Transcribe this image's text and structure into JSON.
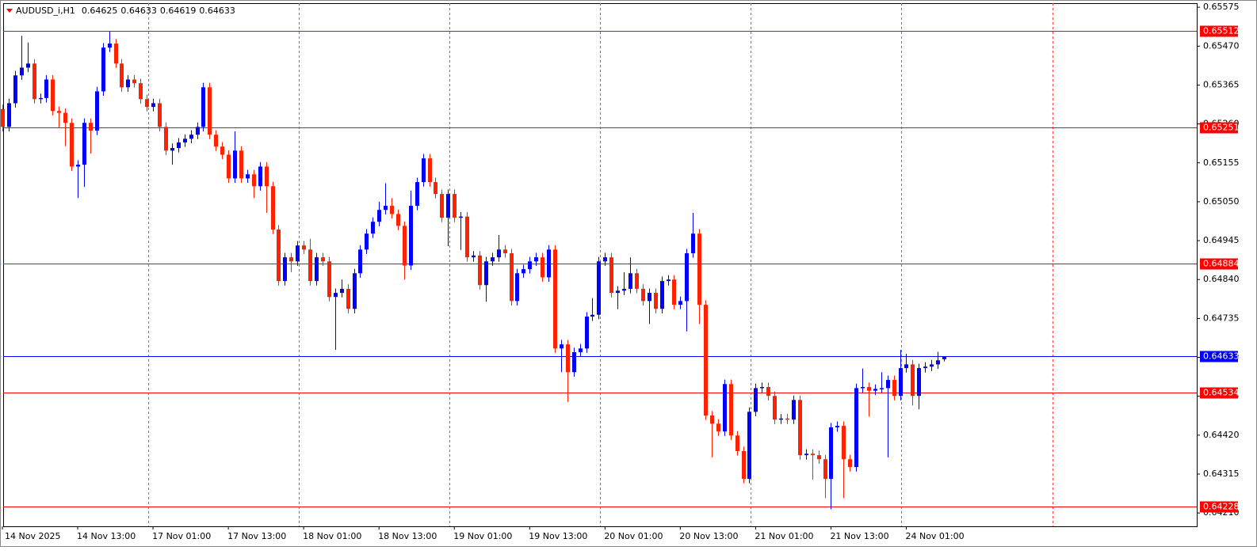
{
  "chart_data": {
    "type": "candlestick",
    "symbol": "AUDUSD_i,H1",
    "up_color": "#0000ff",
    "down_color": "#ff2200",
    "ylim": [
      0.64174,
      0.65586
    ],
    "yticks": [
      0.65575,
      {
        "value": 0.6547,
        "label": "0.65470"
      },
      0.65365,
      {
        "value": 0.6526,
        "label": "0.65260"
      },
      0.65155,
      {
        "value": 0.6505,
        "label": "0.65050"
      },
      0.64945,
      {
        "value": 0.6484,
        "label": "0.64840"
      },
      0.64735,
      {
        "value": 0.6463,
        "label": "0.64630"
      },
      0.64525,
      {
        "value": 0.6442,
        "label": "0.64420"
      },
      0.64315,
      {
        "value": 0.6421,
        "label": "0.64210"
      }
    ],
    "levels": [
      {
        "value": 0.65512,
        "color": "#ff0000"
      },
      {
        "value": 0.65251,
        "color": "#ff0000"
      },
      {
        "value": 0.64884,
        "color": "#ff0000"
      },
      {
        "value": 0.64534,
        "color": "#ff0000"
      },
      {
        "value": 0.64228,
        "color": "#ff0000"
      }
    ],
    "bid": {
      "value": 0.64633,
      "color": "#0000ff"
    },
    "categories": [
      "14 Nov 2025",
      null,
      null,
      null,
      null,
      null,
      null,
      null,
      null,
      null,
      null,
      null,
      "14 Nov 13:00",
      null,
      null,
      null,
      null,
      null,
      null,
      null,
      null,
      null,
      null,
      null,
      "17 Nov 01:00",
      null,
      null,
      null,
      null,
      null,
      null,
      null,
      null,
      null,
      null,
      null,
      "17 Nov 13:00",
      null,
      null,
      null,
      null,
      null,
      null,
      null,
      null,
      null,
      null,
      null,
      "18 Nov 01:00",
      null,
      null,
      null,
      null,
      null,
      null,
      null,
      null,
      null,
      null,
      null,
      "18 Nov 13:00",
      null,
      null,
      null,
      null,
      null,
      null,
      null,
      null,
      null,
      null,
      null,
      "19 Nov 01:00",
      null,
      null,
      null,
      null,
      null,
      null,
      null,
      null,
      null,
      null,
      null,
      "19 Nov 13:00",
      null,
      null,
      null,
      null,
      null,
      null,
      null,
      null,
      null,
      null,
      null,
      "20 Nov 01:00",
      null,
      null,
      null,
      null,
      null,
      null,
      null,
      null,
      null,
      null,
      null,
      "20 Nov 13:00",
      null,
      null,
      null,
      null,
      null,
      null,
      null,
      null,
      null,
      null,
      null,
      "21 Nov 01:00",
      null,
      null,
      null,
      null,
      null,
      null,
      null,
      null,
      null,
      null,
      null,
      "21 Nov 13:00",
      null,
      null,
      null,
      null,
      null,
      null,
      null,
      null,
      null,
      null,
      null,
      "24 Nov 01:00",
      null,
      null,
      null,
      null,
      null,
      null
    ],
    "candles": [
      [
        0.653,
        0.65312,
        0.6524,
        0.65252
      ],
      [
        0.65252,
        0.65328,
        0.6524,
        0.65316
      ],
      [
        0.65316,
        0.65403,
        0.65304,
        0.65391
      ],
      [
        0.65391,
        0.65498,
        0.65379,
        0.65412
      ],
      [
        0.65412,
        0.6548,
        0.654,
        0.65423
      ],
      [
        0.65423,
        0.65435,
        0.65315,
        0.65327
      ],
      [
        0.65327,
        0.65342,
        0.65315,
        0.6533
      ],
      [
        0.6533,
        0.65392,
        0.65318,
        0.6538
      ],
      [
        0.6538,
        0.65392,
        0.65283,
        0.65295
      ],
      [
        0.65295,
        0.65307,
        0.6525,
        0.6529
      ],
      [
        0.6529,
        0.65302,
        0.652,
        0.65263
      ],
      [
        0.65263,
        0.65275,
        0.65133,
        0.65145
      ],
      [
        0.65145,
        0.65162,
        0.6506,
        0.6515
      ],
      [
        0.6515,
        0.65275,
        0.6509,
        0.65263
      ],
      [
        0.65263,
        0.65275,
        0.6518,
        0.65242
      ],
      [
        0.65242,
        0.6536,
        0.6523,
        0.65348
      ],
      [
        0.65348,
        0.65478,
        0.65336,
        0.65466
      ],
      [
        0.65466,
        0.6551,
        0.65454,
        0.65477
      ],
      [
        0.65477,
        0.65489,
        0.65411,
        0.65423
      ],
      [
        0.65423,
        0.65435,
        0.65347,
        0.65359
      ],
      [
        0.65359,
        0.65392,
        0.65347,
        0.6538
      ],
      [
        0.6538,
        0.65392,
        0.65358,
        0.6537
      ],
      [
        0.6537,
        0.65382,
        0.65315,
        0.65327
      ],
      [
        0.65327,
        0.65339,
        0.65294,
        0.65306
      ],
      [
        0.65306,
        0.65328,
        0.65294,
        0.65316
      ],
      [
        0.65316,
        0.65328,
        0.6524,
        0.65252
      ],
      [
        0.65252,
        0.65264,
        0.65176,
        0.65188
      ],
      [
        0.65188,
        0.65207,
        0.6515,
        0.65195
      ],
      [
        0.65195,
        0.65222,
        0.65183,
        0.6521
      ],
      [
        0.6521,
        0.65232,
        0.65198,
        0.6522
      ],
      [
        0.6522,
        0.65243,
        0.65208,
        0.65231
      ],
      [
        0.65231,
        0.65264,
        0.65219,
        0.65252
      ],
      [
        0.65252,
        0.65371,
        0.6524,
        0.65359
      ],
      [
        0.65359,
        0.65371,
        0.65219,
        0.65231
      ],
      [
        0.65231,
        0.65243,
        0.65187,
        0.65199
      ],
      [
        0.65199,
        0.65211,
        0.65165,
        0.65177
      ],
      [
        0.65177,
        0.65189,
        0.65101,
        0.65113
      ],
      [
        0.65113,
        0.6524,
        0.65101,
        0.65188
      ],
      [
        0.65188,
        0.652,
        0.65101,
        0.65113
      ],
      [
        0.65113,
        0.65136,
        0.65101,
        0.65124
      ],
      [
        0.65124,
        0.65136,
        0.6506,
        0.65092
      ],
      [
        0.65092,
        0.65157,
        0.6508,
        0.65145
      ],
      [
        0.65145,
        0.65157,
        0.6502,
        0.65092
      ],
      [
        0.65092,
        0.65104,
        0.64963,
        0.64975
      ],
      [
        0.64975,
        0.64987,
        0.64824,
        0.64836
      ],
      [
        0.64836,
        0.64912,
        0.64824,
        0.649
      ],
      [
        0.649,
        0.64912,
        0.6486,
        0.64889
      ],
      [
        0.64889,
        0.64944,
        0.64877,
        0.64932
      ],
      [
        0.64932,
        0.64944,
        0.64909,
        0.64921
      ],
      [
        0.64921,
        0.6495,
        0.64824,
        0.64836
      ],
      [
        0.64836,
        0.64912,
        0.64824,
        0.649
      ],
      [
        0.649,
        0.64912,
        0.64877,
        0.64889
      ],
      [
        0.64889,
        0.64901,
        0.64781,
        0.64793
      ],
      [
        0.64793,
        0.64816,
        0.6465,
        0.64804
      ],
      [
        0.64804,
        0.6484,
        0.64792,
        0.64815
      ],
      [
        0.64815,
        0.64827,
        0.64749,
        0.64761
      ],
      [
        0.64761,
        0.64869,
        0.64749,
        0.64857
      ],
      [
        0.64857,
        0.64933,
        0.64845,
        0.64921
      ],
      [
        0.64921,
        0.64976,
        0.64909,
        0.64964
      ],
      [
        0.64964,
        0.65008,
        0.64952,
        0.64996
      ],
      [
        0.64996,
        0.6505,
        0.64984,
        0.65028
      ],
      [
        0.65028,
        0.651,
        0.65016,
        0.65039
      ],
      [
        0.65039,
        0.6506,
        0.65005,
        0.65017
      ],
      [
        0.65017,
        0.65029,
        0.64973,
        0.64985
      ],
      [
        0.64985,
        0.64997,
        0.6484,
        0.64878
      ],
      [
        0.64878,
        0.6508,
        0.64866,
        0.65039
      ],
      [
        0.65039,
        0.65115,
        0.65027,
        0.65103
      ],
      [
        0.65103,
        0.65179,
        0.65091,
        0.65167
      ],
      [
        0.65167,
        0.65179,
        0.65091,
        0.65103
      ],
      [
        0.65103,
        0.65115,
        0.65059,
        0.65071
      ],
      [
        0.65071,
        0.65083,
        0.64995,
        0.65007
      ],
      [
        0.65007,
        0.65083,
        0.6493,
        0.65071
      ],
      [
        0.65071,
        0.65083,
        0.64995,
        0.65007
      ],
      [
        0.65007,
        0.65022,
        0.6492,
        0.6501
      ],
      [
        0.6501,
        0.65022,
        0.64888,
        0.649
      ],
      [
        0.649,
        0.64917,
        0.64888,
        0.64905
      ],
      [
        0.64905,
        0.64917,
        0.64813,
        0.64825
      ],
      [
        0.64825,
        0.64901,
        0.6478,
        0.64889
      ],
      [
        0.64889,
        0.64912,
        0.64877,
        0.649
      ],
      [
        0.649,
        0.6496,
        0.64888,
        0.64921
      ],
      [
        0.64921,
        0.64933,
        0.64899,
        0.64911
      ],
      [
        0.64911,
        0.64923,
        0.6477,
        0.64782
      ],
      [
        0.64782,
        0.64869,
        0.6477,
        0.64857
      ],
      [
        0.64857,
        0.6488,
        0.64845,
        0.64868
      ],
      [
        0.64868,
        0.64901,
        0.64856,
        0.64889
      ],
      [
        0.64889,
        0.64912,
        0.64877,
        0.649
      ],
      [
        0.649,
        0.64912,
        0.64834,
        0.64846
      ],
      [
        0.64846,
        0.64933,
        0.64834,
        0.64921
      ],
      [
        0.64921,
        0.64933,
        0.64642,
        0.64654
      ],
      [
        0.64654,
        0.64677,
        0.6459,
        0.64665
      ],
      [
        0.64665,
        0.64677,
        0.6451,
        0.6459
      ],
      [
        0.6459,
        0.64656,
        0.64578,
        0.64644
      ],
      [
        0.64644,
        0.64666,
        0.64632,
        0.64654
      ],
      [
        0.64654,
        0.64752,
        0.64642,
        0.6474
      ],
      [
        0.6474,
        0.6479,
        0.64728,
        0.64745
      ],
      [
        0.64745,
        0.64901,
        0.64733,
        0.64889
      ],
      [
        0.64889,
        0.64912,
        0.64877,
        0.649
      ],
      [
        0.649,
        0.64912,
        0.64792,
        0.64804
      ],
      [
        0.64804,
        0.64822,
        0.6476,
        0.6481
      ],
      [
        0.6481,
        0.6486,
        0.64798,
        0.64815
      ],
      [
        0.64815,
        0.649,
        0.64803,
        0.64857
      ],
      [
        0.64857,
        0.64869,
        0.64803,
        0.64815
      ],
      [
        0.64815,
        0.64827,
        0.6477,
        0.64782
      ],
      [
        0.64782,
        0.64816,
        0.6472,
        0.64804
      ],
      [
        0.64804,
        0.64816,
        0.64749,
        0.64761
      ],
      [
        0.64761,
        0.64848,
        0.64749,
        0.64836
      ],
      [
        0.64836,
        0.64852,
        0.64824,
        0.6484
      ],
      [
        0.6484,
        0.64852,
        0.6476,
        0.64772
      ],
      [
        0.64772,
        0.64794,
        0.6476,
        0.64782
      ],
      [
        0.64782,
        0.64923,
        0.647,
        0.64911
      ],
      [
        0.64911,
        0.6502,
        0.64899,
        0.64964
      ],
      [
        0.64964,
        0.64976,
        0.6472,
        0.64772
      ],
      [
        0.64772,
        0.64784,
        0.64461,
        0.64473
      ],
      [
        0.64473,
        0.64485,
        0.6436,
        0.64451
      ],
      [
        0.64451,
        0.64463,
        0.64418,
        0.6443
      ],
      [
        0.6443,
        0.6457,
        0.64418,
        0.64558
      ],
      [
        0.64558,
        0.6457,
        0.64407,
        0.64419
      ],
      [
        0.64419,
        0.64431,
        0.64365,
        0.64377
      ],
      [
        0.64377,
        0.64389,
        0.6429,
        0.64302
      ],
      [
        0.64302,
        0.64495,
        0.6429,
        0.64483
      ],
      [
        0.64483,
        0.64559,
        0.64471,
        0.64547
      ],
      [
        0.64547,
        0.64562,
        0.64535,
        0.6455
      ],
      [
        0.6455,
        0.64562,
        0.64514,
        0.64526
      ],
      [
        0.64526,
        0.64538,
        0.6445,
        0.64462
      ],
      [
        0.64462,
        0.64477,
        0.6445,
        0.64465
      ],
      [
        0.64465,
        0.64477,
        0.6445,
        0.64462
      ],
      [
        0.64462,
        0.64527,
        0.6445,
        0.64515
      ],
      [
        0.64515,
        0.64527,
        0.64354,
        0.64366
      ],
      [
        0.64366,
        0.64382,
        0.64354,
        0.6437
      ],
      [
        0.6437,
        0.64382,
        0.643,
        0.64366
      ],
      [
        0.64366,
        0.64378,
        0.64343,
        0.64355
      ],
      [
        0.64355,
        0.64367,
        0.6425,
        0.64302
      ],
      [
        0.64302,
        0.64453,
        0.6422,
        0.64441
      ],
      [
        0.64441,
        0.64457,
        0.64429,
        0.64445
      ],
      [
        0.64445,
        0.64457,
        0.6425,
        0.64355
      ],
      [
        0.64355,
        0.64367,
        0.64322,
        0.64334
      ],
      [
        0.64334,
        0.64559,
        0.64322,
        0.64547
      ],
      [
        0.64547,
        0.646,
        0.64535,
        0.6455
      ],
      [
        0.6455,
        0.64562,
        0.6447,
        0.6454
      ],
      [
        0.6454,
        0.64557,
        0.64528,
        0.64545
      ],
      [
        0.64545,
        0.6459,
        0.64535,
        0.64547
      ],
      [
        0.64547,
        0.64581,
        0.6436,
        0.64569
      ],
      [
        0.64569,
        0.64581,
        0.64514,
        0.64526
      ],
      [
        0.64526,
        0.6465,
        0.64514,
        0.64601
      ],
      [
        0.64601,
        0.6464,
        0.64589,
        0.64611
      ],
      [
        0.64611,
        0.64623,
        0.645,
        0.64526
      ],
      [
        0.64526,
        0.64613,
        0.6449,
        0.64601
      ],
      [
        0.64601,
        0.64617,
        0.64589,
        0.64605
      ],
      [
        0.64605,
        0.64623,
        0.64593,
        0.64611
      ],
      [
        0.64611,
        0.64645,
        0.64599,
        0.64622
      ],
      [
        0.64625,
        0.64633,
        0.64619,
        0.64633
      ]
    ]
  }
}
